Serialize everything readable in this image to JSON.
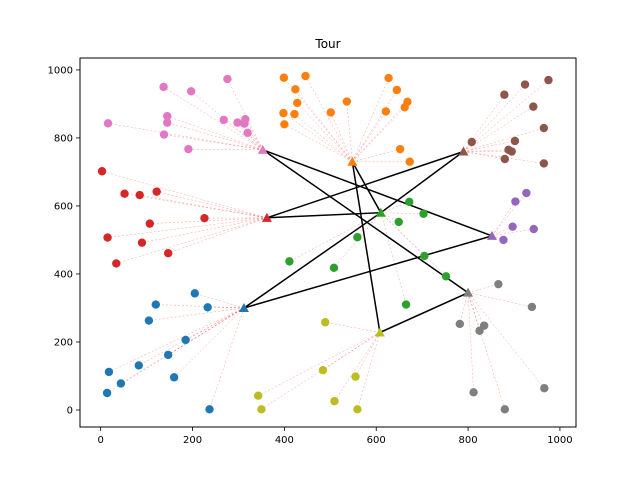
{
  "chart_data": {
    "type": "scatter",
    "title": "Tour",
    "xlabel": "",
    "ylabel": "",
    "xlim": [
      -45,
      1035
    ],
    "ylim": [
      -50,
      1035
    ],
    "xticks": [
      0,
      200,
      400,
      600,
      800,
      1000
    ],
    "yticks": [
      0,
      200,
      400,
      600,
      800,
      1000
    ],
    "grid": false,
    "clusters": [
      {
        "color": "#1f77b4",
        "center": [
          312,
          300
        ],
        "points": [
          [
            120,
            310
          ],
          [
            205,
            343
          ],
          [
            233,
            302
          ],
          [
            105,
            263
          ],
          [
            185,
            206
          ],
          [
            147,
            162
          ],
          [
            83,
            131
          ],
          [
            18,
            112
          ],
          [
            160,
            96
          ],
          [
            44,
            78
          ],
          [
            14,
            50
          ],
          [
            237,
            2
          ]
        ]
      },
      {
        "color": "#ff7f0e",
        "center": [
          548,
          730
        ],
        "points": [
          [
            399,
            977
          ],
          [
            446,
            982
          ],
          [
            424,
            943
          ],
          [
            428,
            903
          ],
          [
            398,
            873
          ],
          [
            422,
            870
          ],
          [
            400,
            840
          ],
          [
            536,
            907
          ],
          [
            501,
            875
          ],
          [
            627,
            976
          ],
          [
            645,
            941
          ],
          [
            668,
            906
          ],
          [
            662,
            890
          ],
          [
            621,
            878
          ],
          [
            652,
            767
          ],
          [
            673,
            730
          ]
        ]
      },
      {
        "color": "#2ca02c",
        "center": [
          610,
          580
        ],
        "points": [
          [
            672,
            612
          ],
          [
            703,
            577
          ],
          [
            649,
            553
          ],
          [
            559,
            508
          ],
          [
            411,
            437
          ],
          [
            508,
            418
          ],
          [
            705,
            453
          ],
          [
            752,
            393
          ],
          [
            665,
            310
          ]
        ]
      },
      {
        "color": "#d62728",
        "center": [
          362,
          565
        ],
        "points": [
          [
            52,
            636
          ],
          [
            85,
            632
          ],
          [
            122,
            642
          ],
          [
            226,
            564
          ],
          [
            107,
            548
          ],
          [
            15,
            507
          ],
          [
            90,
            492
          ],
          [
            147,
            461
          ],
          [
            34,
            431
          ],
          [
            3,
            702
          ]
        ]
      },
      {
        "color": "#9467bd",
        "center": [
          852,
          512
        ],
        "points": [
          [
            927,
            638
          ],
          [
            903,
            613
          ],
          [
            897,
            539
          ],
          [
            943,
            532
          ],
          [
            877,
            500
          ]
        ]
      },
      {
        "color": "#8c564b",
        "center": [
          790,
          760
        ],
        "points": [
          [
            879,
            927
          ],
          [
            924,
            957
          ],
          [
            975,
            970
          ],
          [
            942,
            892
          ],
          [
            965,
            829
          ],
          [
            902,
            791
          ],
          [
            808,
            788
          ],
          [
            888,
            765
          ],
          [
            895,
            760
          ],
          [
            880,
            738
          ],
          [
            965,
            725
          ]
        ]
      },
      {
        "color": "#e377c2",
        "center": [
          353,
          765
        ],
        "points": [
          [
            137,
            950
          ],
          [
            197,
            937
          ],
          [
            276,
            973
          ],
          [
            145,
            864
          ],
          [
            145,
            845
          ],
          [
            268,
            853
          ],
          [
            298,
            845
          ],
          [
            315,
            855
          ],
          [
            313,
            842
          ],
          [
            138,
            810
          ],
          [
            320,
            815
          ],
          [
            191,
            767
          ],
          [
            16,
            843
          ]
        ]
      },
      {
        "color": "#7f7f7f",
        "center": [
          800,
          345
        ],
        "points": [
          [
            866,
            370
          ],
          [
            939,
            303
          ],
          [
            782,
            253
          ],
          [
            835,
            248
          ],
          [
            825,
            233
          ],
          [
            966,
            64
          ],
          [
            812,
            52
          ],
          [
            880,
            2
          ]
        ]
      },
      {
        "color": "#bcbd22",
        "center": [
          608,
          228
        ],
        "points": [
          [
            489,
            258
          ],
          [
            484,
            117
          ],
          [
            555,
            98
          ],
          [
            343,
            42
          ],
          [
            509,
            26
          ],
          [
            350,
            2
          ],
          [
            559,
            2
          ]
        ]
      }
    ],
    "tour": [
      [
        353,
        765
      ],
      [
        852,
        512
      ],
      [
        312,
        300
      ],
      [
        610,
        580
      ],
      [
        790,
        760
      ],
      [
        362,
        565
      ],
      [
        610,
        580
      ],
      [
        548,
        730
      ],
      [
        608,
        228
      ],
      [
        800,
        345
      ],
      [
        353,
        765
      ]
    ]
  }
}
